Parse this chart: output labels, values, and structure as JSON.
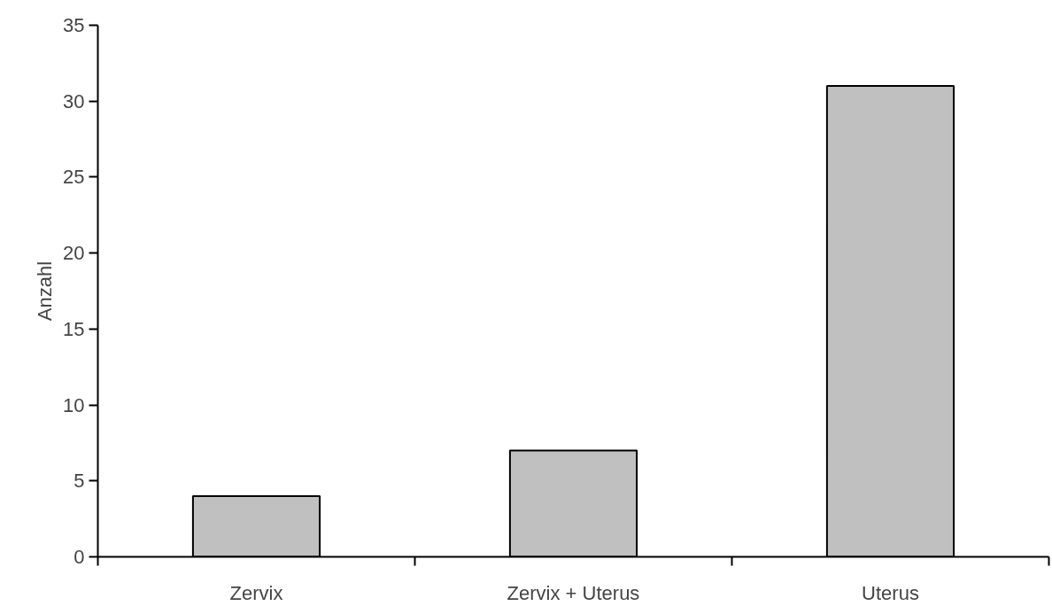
{
  "chart_data": {
    "type": "bar",
    "ylabel": "Anzahl",
    "categories": [
      "Zervix",
      "Zervix + Uterus",
      "Uterus"
    ],
    "values": [
      4,
      7,
      31
    ],
    "color": "#c0c0c0",
    "ylim": [
      0,
      35
    ],
    "yticks": [
      0,
      5,
      10,
      15,
      20,
      25,
      30,
      35
    ],
    "grid": false
  }
}
